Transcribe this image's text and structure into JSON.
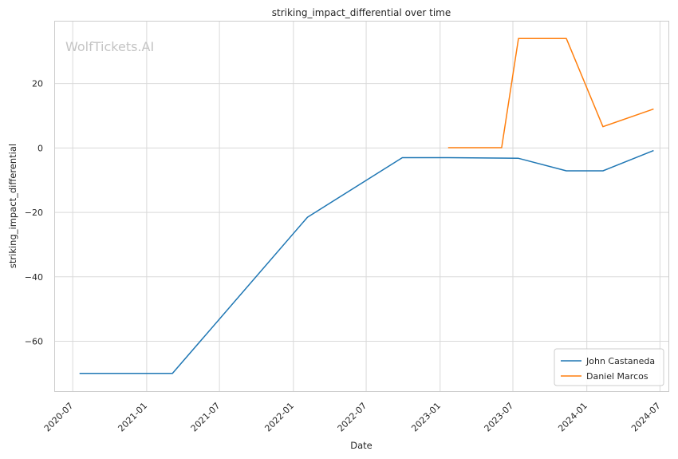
{
  "chart_data": {
    "type": "line",
    "title": "striking_impact_differential over time",
    "xlabel": "Date",
    "ylabel": "striking_impact_differential",
    "watermark": "WolfTickets.AI",
    "x_axis": {
      "type": "date",
      "range": [
        "2020-05-16",
        "2024-07-22"
      ],
      "ticks": [
        "2020-07-01",
        "2021-01-01",
        "2021-07-01",
        "2022-01-01",
        "2022-07-01",
        "2023-01-01",
        "2023-07-01",
        "2024-01-01",
        "2024-07-01"
      ],
      "tick_labels": [
        "2020-07",
        "2021-01",
        "2021-07",
        "2022-01",
        "2022-07",
        "2023-01",
        "2023-07",
        "2024-01",
        "2024-07"
      ]
    },
    "y_axis": {
      "range": [
        -75.5,
        39.5
      ],
      "ticks": [
        -60,
        -40,
        -20,
        0,
        20
      ],
      "tick_labels": [
        "−60",
        "−40",
        "−20",
        "0",
        "20"
      ]
    },
    "grid": true,
    "legend_position": "bottom-right",
    "series": [
      {
        "name": "John Castaneda",
        "color": "#1f77b4",
        "points": [
          {
            "x": "2020-07-18",
            "y": -70
          },
          {
            "x": "2021-03-06",
            "y": -70
          },
          {
            "x": "2022-02-05",
            "y": -21.5
          },
          {
            "x": "2022-09-29",
            "y": -3
          },
          {
            "x": "2023-01-21",
            "y": -3
          },
          {
            "x": "2023-07-15",
            "y": -3.2
          },
          {
            "x": "2023-11-11",
            "y": -7.1
          },
          {
            "x": "2024-02-10",
            "y": -7.1
          },
          {
            "x": "2024-06-15",
            "y": -0.8
          }
        ]
      },
      {
        "name": "Daniel Marcos",
        "color": "#ff7f0e",
        "points": [
          {
            "x": "2023-01-21",
            "y": 0.1
          },
          {
            "x": "2023-06-03",
            "y": 0.1
          },
          {
            "x": "2023-07-15",
            "y": 34
          },
          {
            "x": "2023-11-11",
            "y": 34
          },
          {
            "x": "2024-02-10",
            "y": 6.6
          },
          {
            "x": "2024-06-15",
            "y": 12.1
          }
        ]
      }
    ]
  }
}
